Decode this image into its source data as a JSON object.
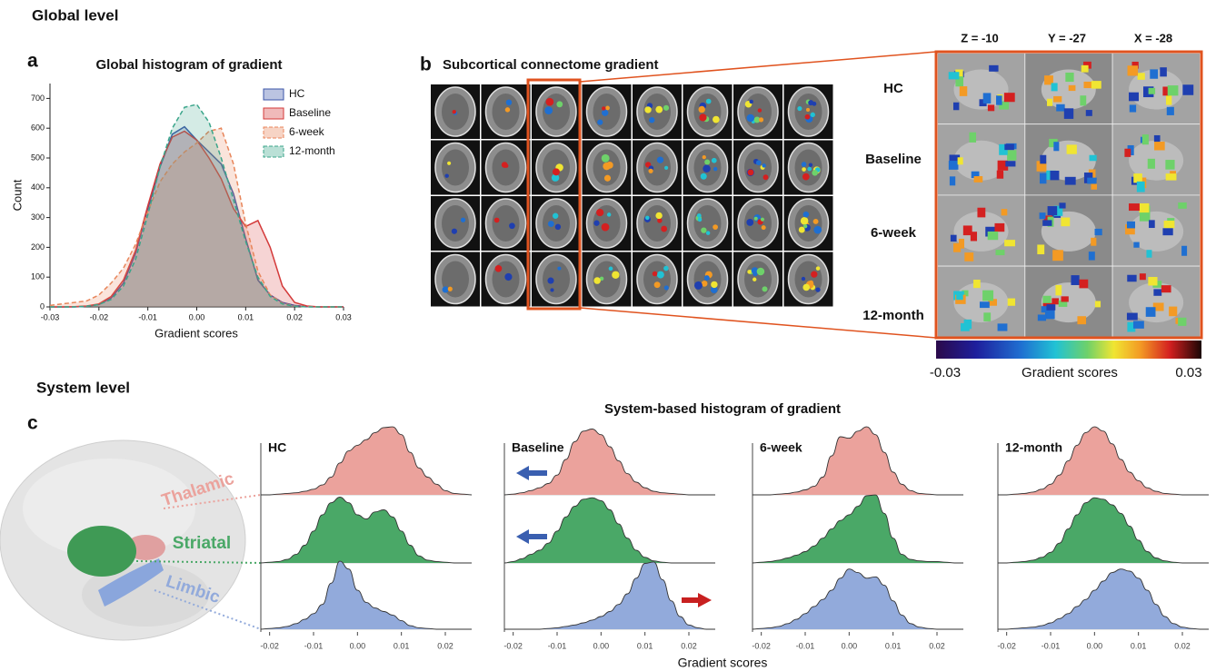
{
  "sections": [
    "Global level",
    "System level"
  ],
  "panels": [
    "a",
    "b",
    "c"
  ],
  "brain_panel": {
    "title": "Subcortical connectome gradient",
    "views": [
      "Z = -10",
      "Y = -27",
      "X = -28"
    ],
    "rows": [
      "HC",
      "Baseline",
      "6-week",
      "12-month"
    ],
    "colorbar": {
      "min": -0.03,
      "max": 0.03,
      "label": "Gradient scores"
    }
  },
  "system_panel": {
    "title": "System-based histogram of gradient",
    "systems": [
      "Thalamic",
      "Striatal",
      "Limbic"
    ],
    "xlabel": "Gradient scores"
  },
  "chart_data": [
    {
      "type": "line",
      "title": "Global histogram of gradient",
      "xlabel": "Gradient scores",
      "ylabel": "Count",
      "legend": "upper right",
      "grid": false,
      "xlim": [
        -0.03,
        0.03
      ],
      "ylim": [
        0,
        750
      ],
      "xticks": [
        -0.03,
        -0.02,
        -0.01,
        {
          "value": 0,
          "label": "0.00"
        },
        0.01,
        0.02,
        0.03
      ],
      "yticks": [
        0,
        100,
        200,
        300,
        400,
        500,
        600,
        700
      ],
      "x": [
        -0.03,
        -0.0275,
        -0.025,
        -0.0225,
        -0.02,
        -0.0175,
        -0.015,
        -0.0125,
        -0.01,
        -0.0075,
        -0.005,
        -0.0025,
        0,
        0.0025,
        0.005,
        0.0075,
        0.01,
        0.0125,
        0.015,
        0.0175,
        0.02,
        0.0225,
        0.025,
        0.0275,
        0.03
      ],
      "series": [
        {
          "name": "HC",
          "color": "#3b55a8",
          "style": "solid",
          "values": [
            0,
            0,
            0,
            2,
            8,
            30,
            80,
            180,
            330,
            470,
            580,
            605,
            560,
            520,
            480,
            380,
            230,
            90,
            40,
            15,
            5,
            1,
            0,
            0,
            0
          ]
        },
        {
          "name": "Baseline",
          "color": "#d43a3a",
          "style": "solid",
          "values": [
            0,
            0,
            1,
            3,
            10,
            35,
            90,
            190,
            340,
            480,
            570,
            590,
            560,
            500,
            430,
            330,
            270,
            290,
            200,
            70,
            15,
            3,
            0,
            0,
            0
          ]
        },
        {
          "name": "6-week",
          "color": "#e8855a",
          "style": "dashed",
          "values": [
            5,
            10,
            15,
            20,
            40,
            80,
            130,
            210,
            320,
            420,
            480,
            520,
            550,
            590,
            600,
            480,
            280,
            120,
            40,
            12,
            3,
            1,
            0,
            0,
            0
          ]
        },
        {
          "name": "12-month",
          "color": "#3aa58a",
          "style": "dashed",
          "values": [
            0,
            0,
            0,
            2,
            8,
            25,
            70,
            160,
            310,
            470,
            600,
            670,
            680,
            620,
            500,
            360,
            220,
            100,
            35,
            10,
            2,
            0,
            0,
            0,
            0
          ]
        }
      ]
    },
    {
      "type": "ridgeline",
      "title": "HC",
      "xlim": [
        -0.022,
        0.026
      ],
      "ylim": [
        0,
        100
      ],
      "xticks": [
        -0.02,
        -0.01,
        {
          "value": 0,
          "label": "0.00"
        },
        0.01,
        0.02
      ],
      "x": [
        -0.022,
        -0.02,
        -0.018,
        -0.016,
        -0.014,
        -0.012,
        -0.01,
        -0.008,
        -0.006,
        -0.004,
        -0.002,
        0,
        0.002,
        0.004,
        0.006,
        0.008,
        0.01,
        0.012,
        0.014,
        0.016,
        0.018,
        0.02,
        0.022,
        0.024,
        0.026
      ],
      "series": [
        {
          "color": "#eba29c",
          "values": [
            0,
            0,
            1,
            2,
            3,
            5,
            8,
            14,
            25,
            45,
            62,
            70,
            78,
            88,
            95,
            96,
            85,
            60,
            38,
            25,
            15,
            6,
            2,
            1,
            0
          ]
        },
        {
          "color": "#4aa867",
          "values": [
            0,
            1,
            2,
            5,
            12,
            25,
            45,
            68,
            85,
            93,
            85,
            68,
            62,
            72,
            75,
            65,
            45,
            25,
            10,
            4,
            2,
            1,
            0,
            0,
            0
          ]
        },
        {
          "color": "#92aadb",
          "values": [
            0,
            1,
            2,
            4,
            8,
            14,
            22,
            35,
            65,
            96,
            85,
            55,
            38,
            30,
            25,
            20,
            12,
            5,
            2,
            1,
            0,
            0,
            0,
            0,
            0
          ]
        }
      ]
    },
    {
      "type": "ridgeline",
      "title": "Baseline",
      "xlim": [
        -0.022,
        0.026
      ],
      "ylim": [
        0,
        100
      ],
      "xticks": [
        -0.02,
        -0.01,
        {
          "value": 0,
          "label": "0.00"
        },
        0.01,
        0.02
      ],
      "x": [
        -0.022,
        -0.02,
        -0.018,
        -0.016,
        -0.014,
        -0.012,
        -0.01,
        -0.008,
        -0.006,
        -0.004,
        -0.002,
        0,
        0.002,
        0.004,
        0.006,
        0.008,
        0.01,
        0.012,
        0.014,
        0.016,
        0.018,
        0.02,
        0.022,
        0.024,
        0.026
      ],
      "series": [
        {
          "color": "#eba29c",
          "values": [
            0,
            1,
            3,
            6,
            10,
            16,
            28,
            50,
            75,
            90,
            93,
            85,
            68,
            48,
            30,
            18,
            10,
            5,
            3,
            2,
            1,
            0,
            0,
            0,
            0
          ]
        },
        {
          "color": "#4aa867",
          "values": [
            0,
            2,
            6,
            12,
            18,
            28,
            45,
            65,
            80,
            90,
            92,
            88,
            75,
            55,
            35,
            18,
            8,
            3,
            1,
            0,
            0,
            0,
            0,
            0,
            0
          ]
        },
        {
          "color": "#92aadb",
          "values": [
            0,
            0,
            0,
            0,
            0,
            1,
            2,
            4,
            6,
            9,
            13,
            18,
            25,
            35,
            50,
            72,
            93,
            95,
            70,
            40,
            18,
            6,
            2,
            0,
            0
          ]
        }
      ]
    },
    {
      "type": "ridgeline",
      "title": "6-week",
      "xlim": [
        -0.022,
        0.026
      ],
      "ylim": [
        0,
        100
      ],
      "xticks": [
        -0.02,
        -0.01,
        {
          "value": 0,
          "label": "0.00"
        },
        0.01,
        0.02
      ],
      "x": [
        -0.022,
        -0.02,
        -0.018,
        -0.016,
        -0.014,
        -0.012,
        -0.01,
        -0.008,
        -0.006,
        -0.004,
        -0.002,
        0,
        0.002,
        0.004,
        0.006,
        0.008,
        0.01,
        0.012,
        0.014,
        0.016,
        0.018,
        0.02,
        0.022,
        0.024,
        0.026
      ],
      "series": [
        {
          "color": "#eba29c",
          "values": [
            0,
            0,
            0,
            1,
            2,
            4,
            7,
            12,
            25,
            55,
            82,
            80,
            90,
            96,
            85,
            60,
            32,
            15,
            6,
            2,
            1,
            0,
            0,
            0,
            0
          ]
        },
        {
          "color": "#4aa867",
          "values": [
            0,
            1,
            2,
            4,
            7,
            11,
            16,
            24,
            35,
            48,
            60,
            68,
            80,
            95,
            96,
            70,
            35,
            12,
            5,
            3,
            2,
            2,
            1,
            0,
            0
          ]
        },
        {
          "color": "#92aadb",
          "values": [
            0,
            1,
            2,
            4,
            8,
            14,
            22,
            32,
            42,
            55,
            72,
            85,
            80,
            72,
            74,
            62,
            40,
            20,
            8,
            3,
            1,
            0,
            0,
            0,
            0
          ]
        }
      ]
    },
    {
      "type": "ridgeline",
      "title": "12-month",
      "xlim": [
        -0.022,
        0.026
      ],
      "ylim": [
        0,
        100
      ],
      "xticks": [
        -0.02,
        -0.01,
        {
          "value": 0,
          "label": "0.00"
        },
        0.01,
        0.02
      ],
      "x": [
        -0.022,
        -0.02,
        -0.018,
        -0.016,
        -0.014,
        -0.012,
        -0.01,
        -0.008,
        -0.006,
        -0.004,
        -0.002,
        0,
        0.002,
        0.004,
        0.006,
        0.008,
        0.01,
        0.012,
        0.014,
        0.016,
        0.018,
        0.02,
        0.022,
        0.024,
        0.026
      ],
      "series": [
        {
          "color": "#eba29c",
          "values": [
            0,
            0,
            1,
            2,
            4,
            8,
            15,
            28,
            48,
            70,
            88,
            96,
            90,
            72,
            50,
            32,
            20,
            10,
            5,
            2,
            1,
            0,
            0,
            0,
            0
          ]
        },
        {
          "color": "#4aa867",
          "values": [
            0,
            0,
            1,
            2,
            4,
            8,
            15,
            28,
            48,
            68,
            85,
            92,
            90,
            82,
            70,
            52,
            32,
            16,
            7,
            3,
            1,
            0,
            0,
            0,
            0
          ]
        },
        {
          "color": "#92aadb",
          "values": [
            0,
            0,
            1,
            2,
            3,
            5,
            9,
            15,
            22,
            32,
            42,
            55,
            68,
            80,
            85,
            82,
            72,
            55,
            35,
            18,
            8,
            3,
            1,
            0,
            0
          ]
        }
      ]
    }
  ]
}
